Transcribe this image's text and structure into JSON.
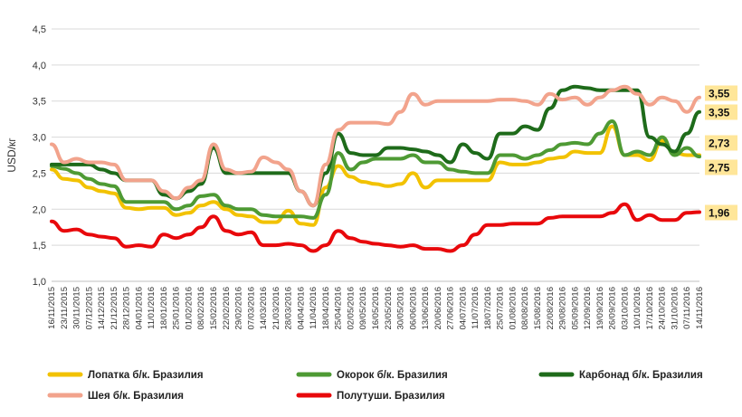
{
  "chart_data": {
    "type": "line",
    "title": "",
    "xlabel": "",
    "ylabel": "USD/кг",
    "ylim": [
      1.0,
      4.5
    ],
    "yticks": [
      "1,0",
      "1,5",
      "2,0",
      "2,5",
      "3,0",
      "3,5",
      "4,0",
      "4,5"
    ],
    "grid": "horizontal",
    "legend_position": "bottom",
    "x": [
      "16/11/2015",
      "23/11/2015",
      "30/11/2015",
      "07/12/2015",
      "14/12/2015",
      "21/12/2015",
      "28/12/2015",
      "04/01/2016",
      "11/01/2016",
      "18/01/2016",
      "25/01/2016",
      "01/02/2016",
      "08/02/2016",
      "15/02/2016",
      "22/02/2016",
      "29/02/2016",
      "07/03/2016",
      "14/03/2016",
      "21/03/2016",
      "28/03/2016",
      "04/04/2016",
      "11/04/2016",
      "18/04/2016",
      "25/04/2016",
      "02/05/2016",
      "09/05/2016",
      "16/05/2016",
      "23/05/2016",
      "30/05/2016",
      "06/06/2016",
      "13/06/2016",
      "20/06/2016",
      "27/06/2016",
      "04/07/2016",
      "11/07/2016",
      "18/07/2016",
      "25/07/2016",
      "01/08/2016",
      "08/08/2016",
      "15/08/2016",
      "22/08/2016",
      "29/08/2016",
      "05/09/2016",
      "12/09/2016",
      "19/09/2016",
      "26/09/2016",
      "03/10/2016",
      "10/10/2016",
      "17/10/2016",
      "24/10/2016",
      "31/10/2016",
      "07/11/2016",
      "14/11/2016"
    ],
    "series": [
      {
        "name": "Лопатка б/к. Бразилия",
        "color": "#F2C200",
        "values": [
          2.55,
          2.42,
          2.4,
          2.3,
          2.25,
          2.22,
          2.02,
          2.0,
          2.02,
          2.02,
          1.92,
          1.95,
          2.05,
          2.1,
          2.0,
          1.92,
          1.9,
          1.82,
          1.82,
          1.98,
          1.8,
          1.78,
          2.3,
          2.6,
          2.45,
          2.38,
          2.35,
          2.32,
          2.35,
          2.5,
          2.3,
          2.4,
          2.4,
          2.4,
          2.4,
          2.4,
          2.65,
          2.62,
          2.62,
          2.65,
          2.7,
          2.72,
          2.8,
          2.78,
          2.78,
          3.15,
          2.75,
          2.75,
          2.68,
          2.95,
          2.78,
          2.75,
          2.75
        ]
      },
      {
        "name": "Окорок б/к. Бразилия",
        "color": "#4E9A34",
        "values": [
          2.6,
          2.56,
          2.5,
          2.42,
          2.35,
          2.32,
          2.1,
          2.1,
          2.1,
          2.1,
          2.0,
          2.05,
          2.18,
          2.2,
          2.05,
          2.0,
          2.0,
          1.92,
          1.9,
          1.9,
          1.9,
          1.88,
          2.2,
          2.78,
          2.55,
          2.65,
          2.7,
          2.7,
          2.7,
          2.75,
          2.65,
          2.65,
          2.55,
          2.52,
          2.5,
          2.5,
          2.75,
          2.75,
          2.7,
          2.75,
          2.82,
          2.9,
          2.92,
          2.9,
          3.05,
          3.22,
          2.75,
          2.8,
          2.75,
          3.0,
          2.75,
          2.85,
          2.73
        ]
      },
      {
        "name": "Карбонад б/к. Бразилия",
        "color": "#1E6B1A",
        "values": [
          2.62,
          2.62,
          2.62,
          2.62,
          2.55,
          2.5,
          2.4,
          2.4,
          2.4,
          2.2,
          2.15,
          2.25,
          2.35,
          2.85,
          2.5,
          2.5,
          2.5,
          2.5,
          2.5,
          2.5,
          2.25,
          2.05,
          2.5,
          3.05,
          2.78,
          2.75,
          2.75,
          2.85,
          2.85,
          2.83,
          2.8,
          2.75,
          2.65,
          2.9,
          2.78,
          2.7,
          3.05,
          3.05,
          3.15,
          3.1,
          3.4,
          3.65,
          3.7,
          3.68,
          3.65,
          3.65,
          3.65,
          3.65,
          3.0,
          2.9,
          2.8,
          3.05,
          3.35
        ]
      },
      {
        "name": "Шея б/к. Бразилия",
        "color": "#F2A38C",
        "values": [
          2.9,
          2.65,
          2.7,
          2.65,
          2.65,
          2.62,
          2.4,
          2.4,
          2.4,
          2.25,
          2.15,
          2.3,
          2.4,
          2.9,
          2.55,
          2.5,
          2.52,
          2.72,
          2.65,
          2.55,
          2.25,
          2.05,
          2.62,
          3.1,
          3.2,
          3.2,
          3.2,
          3.18,
          3.35,
          3.6,
          3.45,
          3.5,
          3.5,
          3.5,
          3.5,
          3.5,
          3.52,
          3.52,
          3.5,
          3.45,
          3.6,
          3.52,
          3.55,
          3.45,
          3.55,
          3.65,
          3.7,
          3.6,
          3.45,
          3.55,
          3.5,
          3.35,
          3.55
        ]
      },
      {
        "name": "Полутуши. Бразилия",
        "color": "#E8080B",
        "values": [
          1.83,
          1.7,
          1.72,
          1.65,
          1.62,
          1.6,
          1.48,
          1.5,
          1.48,
          1.65,
          1.6,
          1.65,
          1.75,
          1.9,
          1.7,
          1.65,
          1.68,
          1.5,
          1.5,
          1.52,
          1.5,
          1.42,
          1.5,
          1.7,
          1.6,
          1.55,
          1.52,
          1.5,
          1.48,
          1.5,
          1.45,
          1.45,
          1.42,
          1.5,
          1.65,
          1.78,
          1.78,
          1.8,
          1.8,
          1.8,
          1.88,
          1.9,
          1.9,
          1.9,
          1.9,
          1.95,
          2.07,
          1.85,
          1.92,
          1.85,
          1.85,
          1.95,
          1.96
        ]
      }
    ],
    "end_labels": [
      "3,55",
      "3,35",
      "2,73",
      "2,75",
      "1,96"
    ]
  }
}
